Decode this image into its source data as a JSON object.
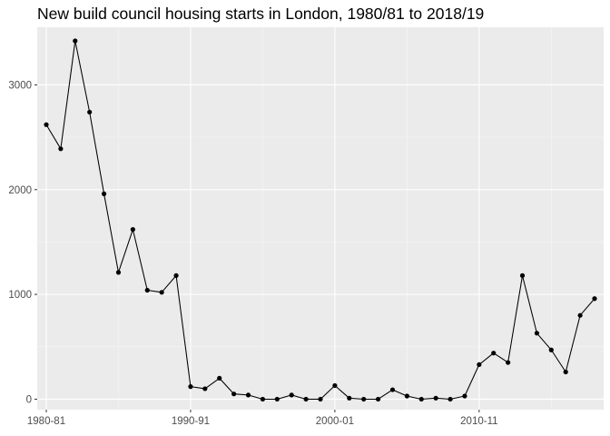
{
  "chart_data": {
    "type": "line",
    "title": "New build council housing starts in London, 1980/81 to 2018/19",
    "xlabel": "",
    "ylabel": "",
    "markers": true,
    "grid": true,
    "legend": "none",
    "colors": {
      "panel_background": "#ebebeb",
      "grid_major": "#ffffff",
      "grid_minor": "#f5f5f5",
      "line": "#000000",
      "point": "#000000",
      "tick_text": "#4d4d4d"
    },
    "x_tick_labels": [
      "1980-81",
      "1990-91",
      "2000-01",
      "2010-11"
    ],
    "x_tick_values": [
      "1980-81",
      "1990-91",
      "2000-01",
      "2010-11"
    ],
    "y_ticks": [
      0,
      1000,
      2000,
      3000
    ],
    "ylim": [
      -100,
      3550
    ],
    "categories": [
      "1980-81",
      "1981-82",
      "1982-83",
      "1983-84",
      "1984-85",
      "1985-86",
      "1986-87",
      "1987-88",
      "1988-89",
      "1989-90",
      "1990-91",
      "1991-92",
      "1992-93",
      "1993-94",
      "1994-95",
      "1995-96",
      "1996-97",
      "1997-98",
      "1998-99",
      "1999-00",
      "2000-01",
      "2001-02",
      "2002-03",
      "2003-04",
      "2004-05",
      "2005-06",
      "2006-07",
      "2007-08",
      "2008-09",
      "2009-10",
      "2010-11",
      "2011-12",
      "2012-13",
      "2013-14",
      "2014-15",
      "2015-16",
      "2016-17",
      "2017-18",
      "2018-19"
    ],
    "values": [
      2620,
      2390,
      3420,
      2740,
      1960,
      1210,
      1620,
      1040,
      1020,
      1180,
      120,
      100,
      200,
      50,
      40,
      0,
      0,
      40,
      0,
      0,
      130,
      10,
      0,
      0,
      90,
      30,
      0,
      10,
      0,
      30,
      330,
      440,
      350,
      1180,
      630,
      470,
      260,
      800,
      960
    ]
  }
}
